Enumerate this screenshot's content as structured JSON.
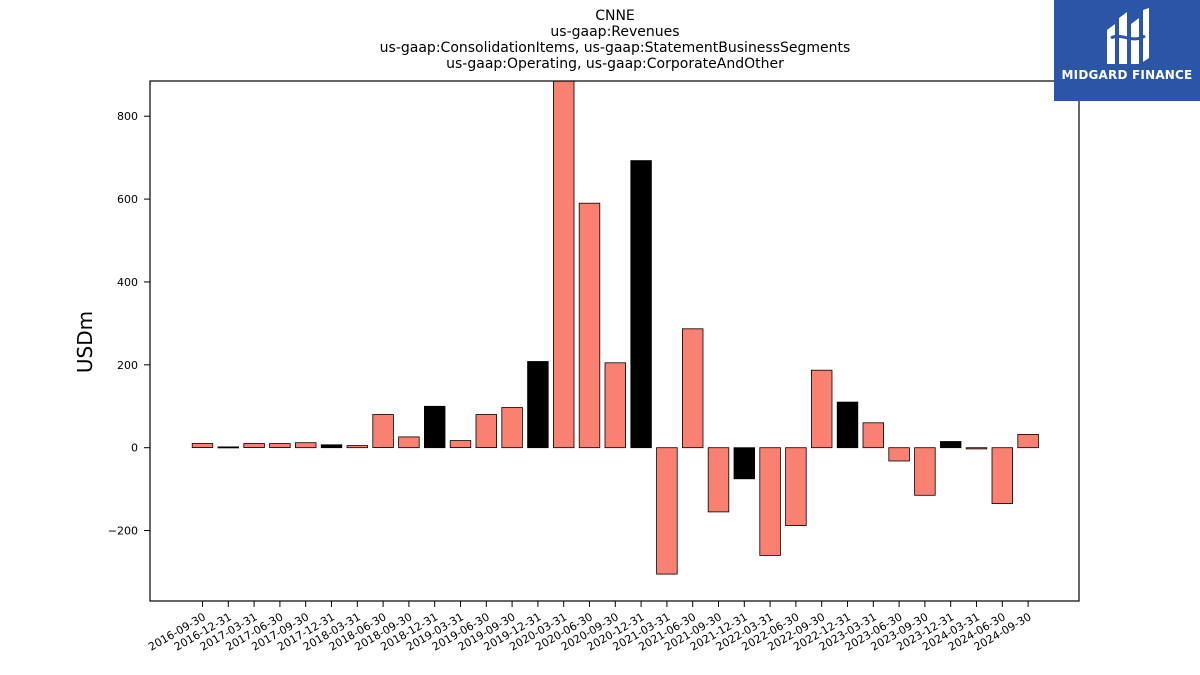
{
  "chart_data": {
    "type": "bar",
    "title_lines": [
      "CNNE",
      "us-gaap:Revenues",
      "us-gaap:ConsolidationItems, us-gaap:StatementBusinessSegments",
      "us-gaap:Operating, us-gaap:CorporateAndOther"
    ],
    "xlabel": "",
    "ylabel": "USDm",
    "ylim": [
      -370,
      885
    ],
    "yticks": [
      -200,
      0,
      200,
      400,
      600,
      800
    ],
    "ytick_labels": [
      "−200",
      "0",
      "200",
      "400",
      "600",
      "800"
    ],
    "grid": false,
    "categories": [
      "2016-09-30",
      "2016-12-31",
      "2017-03-31",
      "2017-06-30",
      "2017-09-30",
      "2017-12-31",
      "2018-03-31",
      "2018-06-30",
      "2018-09-30",
      "2018-12-31",
      "2019-03-31",
      "2019-06-30",
      "2019-09-30",
      "2019-12-31",
      "2020-03-31",
      "2020-06-30",
      "2020-09-30",
      "2020-12-31",
      "2021-03-31",
      "2021-06-30",
      "2021-09-30",
      "2021-12-31",
      "2022-03-31",
      "2022-06-30",
      "2022-09-30",
      "2022-12-31",
      "2023-03-31",
      "2023-06-30",
      "2023-09-30",
      "2023-12-31",
      "2024-03-31",
      "2024-06-30",
      "2024-09-30"
    ],
    "values": [
      10,
      2,
      10,
      10,
      12,
      7,
      5,
      80,
      26,
      100,
      17,
      80,
      97,
      208,
      885,
      590,
      205,
      693,
      -305,
      287,
      -155,
      -75,
      -260,
      -188,
      187,
      110,
      60,
      -32,
      -115,
      15,
      -3,
      -135,
      32
    ],
    "bar_colors": [
      "#fa8072",
      "#000000",
      "#fa8072",
      "#fa8072",
      "#fa8072",
      "#000000",
      "#fa8072",
      "#fa8072",
      "#fa8072",
      "#000000",
      "#fa8072",
      "#fa8072",
      "#fa8072",
      "#000000",
      "#fa8072",
      "#fa8072",
      "#fa8072",
      "#000000",
      "#fa8072",
      "#fa8072",
      "#fa8072",
      "#000000",
      "#fa8072",
      "#fa8072",
      "#fa8072",
      "#000000",
      "#fa8072",
      "#fa8072",
      "#fa8072",
      "#000000",
      "#fa8072",
      "#fa8072",
      "#fa8072"
    ]
  },
  "logo": {
    "text": "MIDGARD FINANCE",
    "background": "#2b55a6"
  }
}
